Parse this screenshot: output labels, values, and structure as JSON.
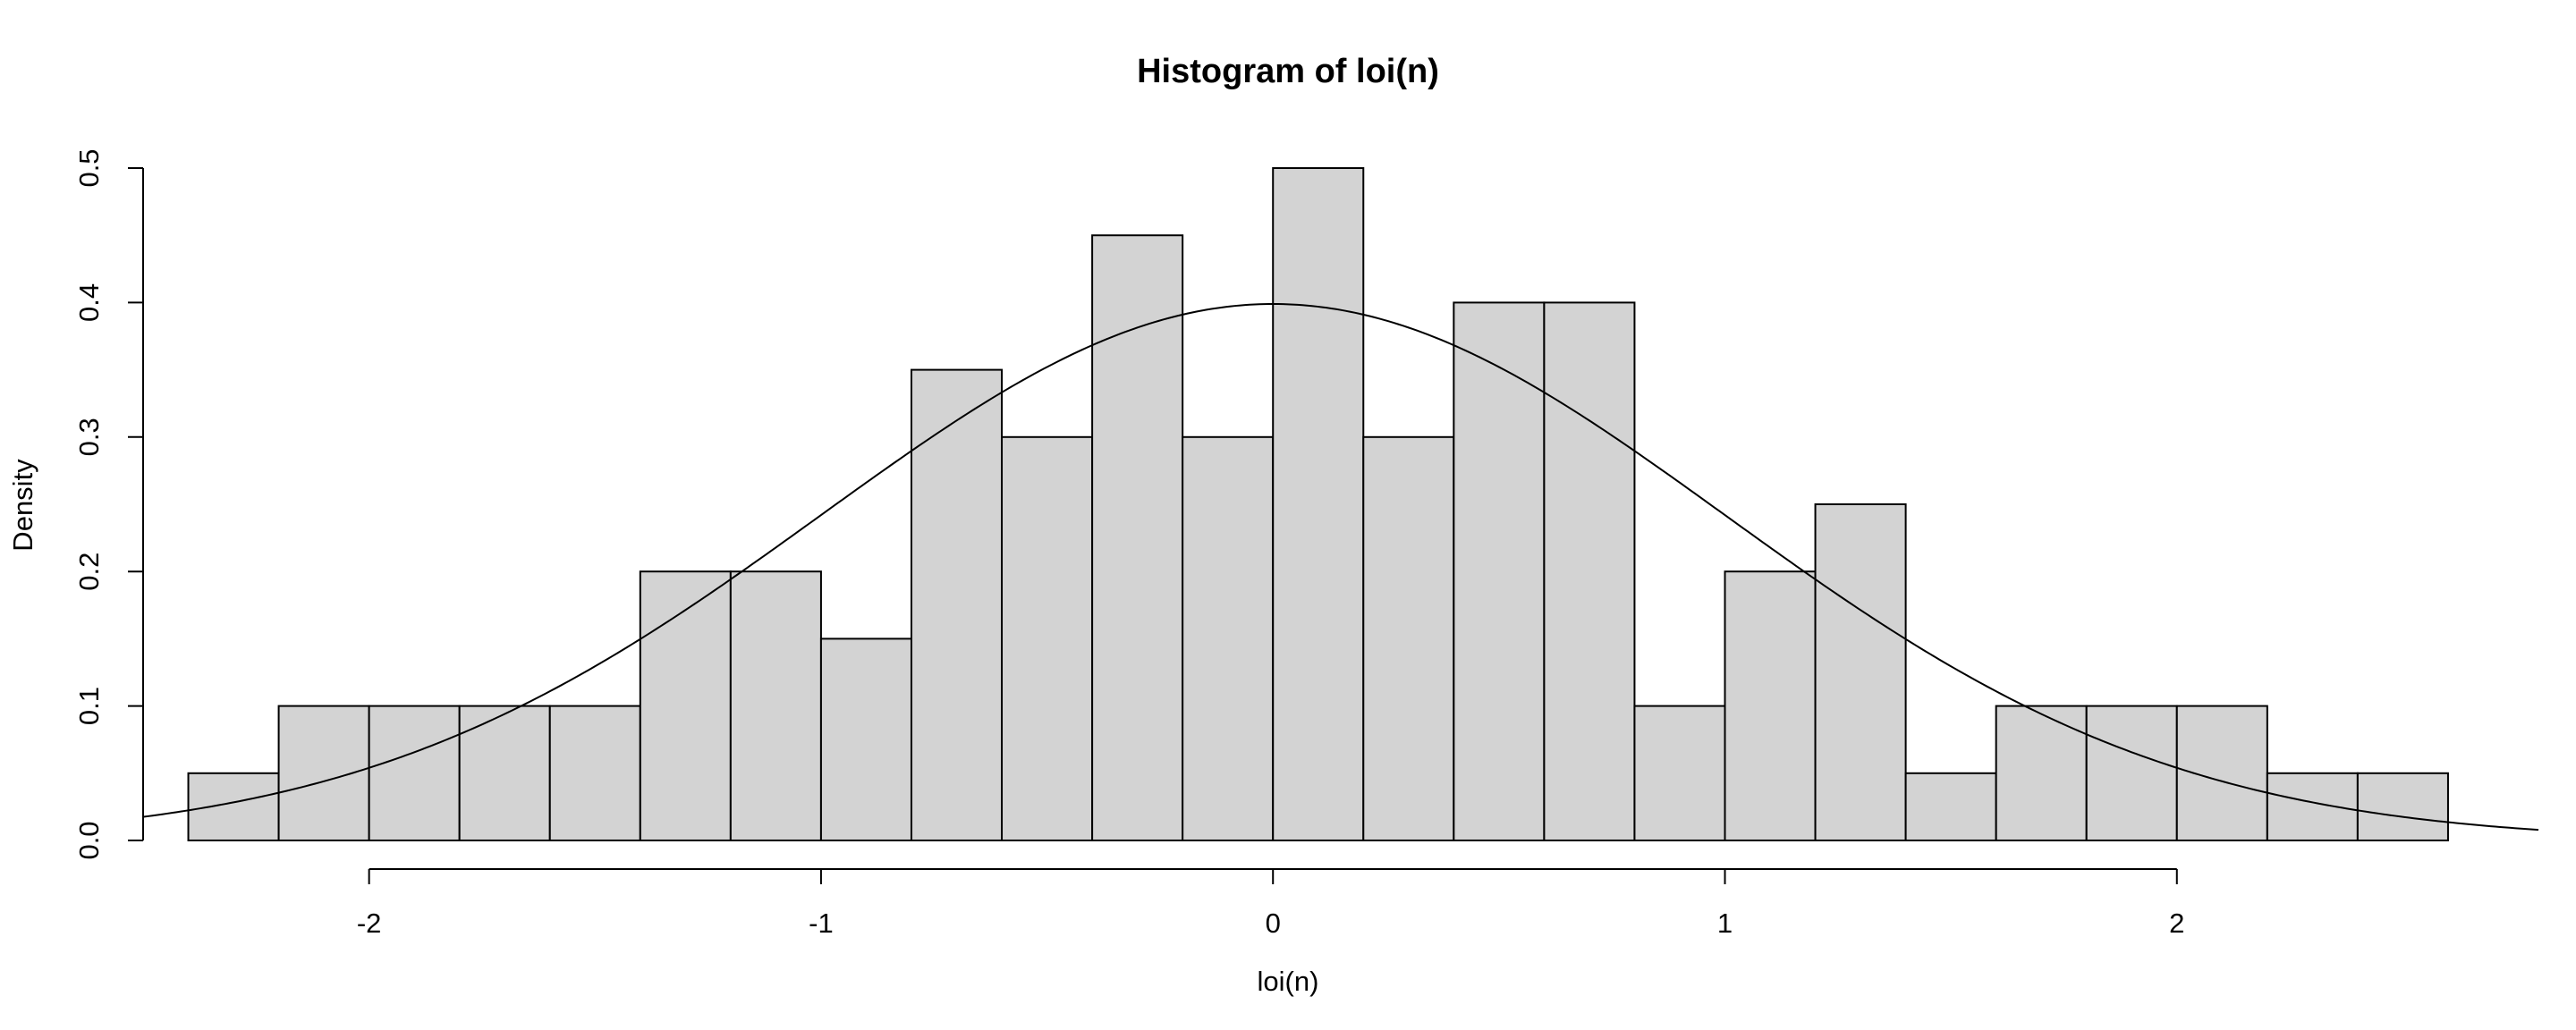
{
  "chart_data": {
    "type": "bar",
    "title": "Histogram of loi(n)",
    "xlabel": "loi(n)",
    "ylabel": "Density",
    "xlim": [
      -2.5,
      2.8
    ],
    "ylim": [
      0,
      0.5
    ],
    "x_ticks": [
      -2,
      -1,
      0,
      1,
      2
    ],
    "y_ticks": [
      0.0,
      0.1,
      0.2,
      0.3,
      0.4,
      0.5
    ],
    "x_tick_labels": [
      "-2",
      "-1",
      "0",
      "1",
      "2"
    ],
    "y_tick_labels": [
      "0.0",
      "0.1",
      "0.2",
      "0.3",
      "0.4",
      "0.5"
    ],
    "bins": [
      {
        "start": -2.4,
        "end": -2.2,
        "density": 0.05
      },
      {
        "start": -2.2,
        "end": -2.0,
        "density": 0.1
      },
      {
        "start": -2.0,
        "end": -1.8,
        "density": 0.1
      },
      {
        "start": -1.8,
        "end": -1.6,
        "density": 0.1
      },
      {
        "start": -1.6,
        "end": -1.4,
        "density": 0.1
      },
      {
        "start": -1.4,
        "end": -1.2,
        "density": 0.2
      },
      {
        "start": -1.2,
        "end": -1.0,
        "density": 0.2
      },
      {
        "start": -1.0,
        "end": -0.8,
        "density": 0.15
      },
      {
        "start": -0.8,
        "end": -0.6,
        "density": 0.35
      },
      {
        "start": -0.6,
        "end": -0.4,
        "density": 0.3
      },
      {
        "start": -0.4,
        "end": -0.2,
        "density": 0.45
      },
      {
        "start": -0.2,
        "end": 0.0,
        "density": 0.3
      },
      {
        "start": 0.0,
        "end": 0.2,
        "density": 0.5
      },
      {
        "start": 0.2,
        "end": 0.4,
        "density": 0.3
      },
      {
        "start": 0.4,
        "end": 0.6,
        "density": 0.4
      },
      {
        "start": 0.6,
        "end": 0.8,
        "density": 0.4
      },
      {
        "start": 0.8,
        "end": 1.0,
        "density": 0.1
      },
      {
        "start": 1.0,
        "end": 1.2,
        "density": 0.2
      },
      {
        "start": 1.2,
        "end": 1.4,
        "density": 0.25
      },
      {
        "start": 1.4,
        "end": 1.6,
        "density": 0.05
      },
      {
        "start": 1.6,
        "end": 1.8,
        "density": 0.1
      },
      {
        "start": 1.8,
        "end": 2.0,
        "density": 0.1
      },
      {
        "start": 2.0,
        "end": 2.2,
        "density": 0.1
      },
      {
        "start": 2.2,
        "end": 2.4,
        "density": 0.05
      },
      {
        "start": 2.4,
        "end": 2.6,
        "density": 0.05
      }
    ],
    "overlay_curve": {
      "type": "normal-density",
      "mean": 0,
      "sd": 1,
      "x_range": [
        -2.5,
        2.8
      ]
    },
    "grid": false,
    "colors": {
      "bar_fill": "#d3d3d3",
      "bar_stroke": "#000000",
      "curve": "#000000"
    }
  }
}
